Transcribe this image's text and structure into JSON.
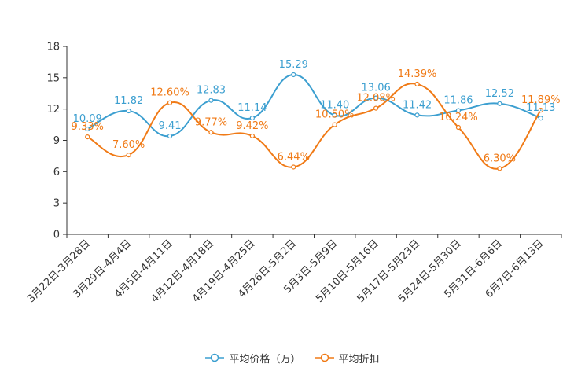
{
  "chart_data": {
    "type": "line",
    "title": "",
    "xlabel": "",
    "ylabel": "",
    "ylim": [
      0,
      18
    ],
    "yticks": [
      0,
      3,
      6,
      9,
      12,
      15,
      18
    ],
    "categories": [
      "3月22日-3月28日",
      "3月29日-4月4日",
      "4月5日-4月11日",
      "4月12日-4月18日",
      "4月19日-4月25日",
      "4月26日-5月2日",
      "5月3日-5月9日",
      "5月10日-5月16日",
      "5月17日-5月23日",
      "5月24日-5月30日",
      "5月31日-6月6日",
      "6月7日-6月13日"
    ],
    "series": [
      {
        "name": "平均价格（万）",
        "color": "#3c9fd0",
        "values": [
          10.09,
          11.82,
          9.41,
          12.83,
          11.14,
          15.29,
          11.4,
          13.06,
          11.42,
          11.86,
          12.52,
          11.13
        ],
        "labels": [
          "10.09",
          "11.82",
          "9.41",
          "12.83",
          "11.14",
          "15.29",
          "11.40",
          "13.06",
          "11.42",
          "11.86",
          "12.52",
          "11.13"
        ]
      },
      {
        "name": "平均折扣",
        "color": "#f07a16",
        "values": [
          9.33,
          7.6,
          12.6,
          9.77,
          9.42,
          6.44,
          10.5,
          12.08,
          14.39,
          10.24,
          6.3,
          11.89
        ],
        "labels": [
          "9.33%",
          "7.60%",
          "12.60%",
          "9.77%",
          "9.42%",
          "6.44%",
          "10.50%",
          "12.08%",
          "14.39%",
          "10.24%",
          "6.30%",
          "11.89%"
        ]
      }
    ],
    "legend": "bottom-center"
  }
}
